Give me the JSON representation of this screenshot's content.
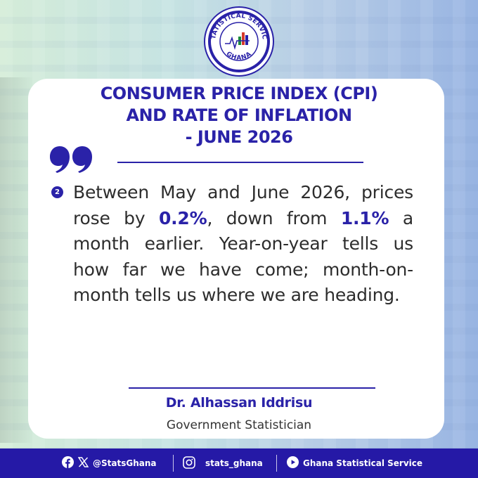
{
  "logo": {
    "top_text": "STATISTICAL SERVICE",
    "bottom_text": "GHANA"
  },
  "title": {
    "line1": "CONSUMER PRICE INDEX (CPI)",
    "line2": "AND RATE OF INFLATION",
    "line3": "- JUNE 2026"
  },
  "quote": {
    "number": "2",
    "part1": "Between May and June 2026, prices rose by ",
    "highlight1": "0.2%",
    "part2": ", down from ",
    "highlight2": "1.1%",
    "part3": " a month earlier. Year-on-year tells us how far we have come; month-on-month tells us where we are heading."
  },
  "signature": {
    "name": "Dr. Alhassan Iddrisu",
    "role": "Government Statistician"
  },
  "footer": {
    "x_handle": "@StatsGhana",
    "instagram_handle": "stats_ghana",
    "youtube_channel": "Ghana Statistical Service"
  },
  "colors": {
    "brand_blue": "#2a22a8",
    "footer_blue": "#2519a6"
  }
}
